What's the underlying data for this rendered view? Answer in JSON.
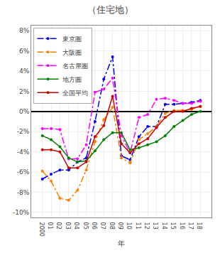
{
  "chart_data": {
    "type": "line",
    "title": "（住宅地）",
    "x_label": "年",
    "categories": [
      "2000",
      "01",
      "02",
      "03",
      "04",
      "05",
      "06",
      "07",
      "08",
      "09",
      "10",
      "11",
      "12",
      "13",
      "14",
      "15",
      "16",
      "17",
      "18"
    ],
    "series": [
      {
        "name": "東京圏",
        "color": "#0000EE",
        "line_style": "dashdot",
        "marker": "circle",
        "values": [
          -6.7,
          -6.2,
          -5.8,
          -5.8,
          -5.0,
          -4.6,
          -1.0,
          3.2,
          5.4,
          -4.4,
          -4.8,
          -2.5,
          -1.5,
          -1.5,
          0.7,
          0.7,
          0.8,
          0.9,
          1.1
        ]
      },
      {
        "name": "大阪圏",
        "color": "#FF8000",
        "line_style": "dashdot",
        "marker": "circle",
        "values": [
          -5.9,
          -6.9,
          -8.6,
          -8.8,
          -7.8,
          -5.8,
          -3.0,
          -0.8,
          0.4,
          -4.6,
          -5.1,
          -2.8,
          -2.2,
          -1.5,
          -0.2,
          0.1,
          0.1,
          0.2,
          0.5
        ]
      },
      {
        "name": "名古屋圏",
        "color": "#FF00FF",
        "line_style": "dashdot",
        "marker": "circle",
        "values": [
          -1.7,
          -1.7,
          -1.8,
          -4.7,
          -4.7,
          -3.3,
          1.9,
          2.2,
          3.3,
          -2.4,
          -4.1,
          -0.6,
          -0.3,
          1.2,
          1.3,
          1.1,
          0.8,
          0.8,
          1.0
        ]
      },
      {
        "name": "地方圏",
        "color": "#008000",
        "line_style": "solid",
        "marker": "circle",
        "values": [
          -2.4,
          -2.8,
          -3.5,
          -4.6,
          -5.0,
          -4.9,
          -3.9,
          -2.8,
          -2.1,
          -2.1,
          -3.8,
          -3.6,
          -3.3,
          -3.0,
          -2.4,
          -1.5,
          -0.9,
          -0.3,
          0.0
        ]
      },
      {
        "name": "全国平均",
        "color": "#CC0000",
        "line_style": "solid",
        "marker": "circle",
        "values": [
          -3.8,
          -3.8,
          -4.0,
          -5.6,
          -5.6,
          -5.0,
          -2.5,
          -1.4,
          1.5,
          -3.2,
          -4.1,
          -3.2,
          -2.7,
          -1.6,
          -0.6,
          0.0,
          0.0,
          0.3,
          0.5
        ]
      }
    ],
    "ylim": [
      -10.5,
      8.5
    ],
    "yticks": [
      {
        "value": -10,
        "label": "-10%"
      },
      {
        "value": -8,
        "label": "-8%"
      },
      {
        "value": -6,
        "label": "-6%"
      },
      {
        "value": -4,
        "label": "-4%"
      },
      {
        "value": -2,
        "label": "-2%"
      },
      {
        "value": 0,
        "label": "0%"
      },
      {
        "value": 2,
        "label": "2%"
      },
      {
        "value": 4,
        "label": "4%"
      },
      {
        "value": 6,
        "label": "6%"
      },
      {
        "value": 8,
        "label": "8%"
      }
    ],
    "grid": true,
    "legend": "upper left"
  }
}
